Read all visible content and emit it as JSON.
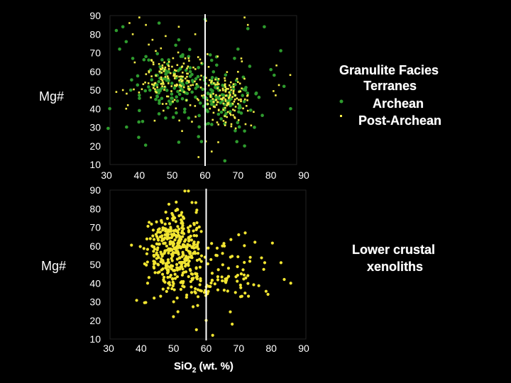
{
  "chart_data": [
    {
      "type": "scatter",
      "ylabel": "Mg#",
      "xlim": [
        30,
        90
      ],
      "ylim": [
        10,
        90
      ],
      "x_ticks": [
        "30",
        "40",
        "50",
        "60",
        "70",
        "80",
        "90"
      ],
      "y_ticks": [
        "90",
        "80",
        "70",
        "60",
        "50",
        "40",
        "30",
        "20",
        "10"
      ],
      "divider_x": 60,
      "legend_title": [
        "Granulite Facies",
        "Terranes"
      ],
      "series": [
        {
          "name": "Archean",
          "color": "#2e9b2e",
          "marker": "dot",
          "clusters": [
            {
              "center": [
                50,
                55
              ],
              "spread": [
                5,
                7
              ],
              "count": 90
            },
            {
              "center": [
                65,
                45
              ],
              "spread": [
                5,
                8
              ],
              "count": 90
            },
            {
              "center": [
                55,
                50
              ],
              "spread": [
                12,
                12
              ],
              "count": 50
            }
          ],
          "points": [
            [
              33,
              82
            ],
            [
              35,
              84
            ],
            [
              34,
              72
            ],
            [
              36,
              76
            ],
            [
              38,
              67
            ],
            [
              42,
              68
            ],
            [
              31,
              40
            ],
            [
              40,
              39
            ],
            [
              46,
              86
            ],
            [
              52,
              77
            ],
            [
              55,
              68
            ],
            [
              60,
              88
            ],
            [
              62,
              66
            ],
            [
              70,
              72
            ],
            [
              73,
              83
            ],
            [
              78,
              84
            ],
            [
              80,
              61
            ],
            [
              81,
              58
            ],
            [
              84,
              52
            ],
            [
              86,
              40
            ],
            [
              75,
              30
            ],
            [
              72,
              28
            ],
            [
              58,
              25
            ],
            [
              52,
              22
            ],
            [
              48,
              35
            ],
            [
              45,
              45
            ],
            [
              72,
              20
            ],
            [
              66,
              12
            ],
            [
              55,
              35
            ],
            [
              61,
              32
            ]
          ]
        },
        {
          "name": "Post-Archean",
          "color": "#f4ec48",
          "marker": "square",
          "clusters": [
            {
              "center": [
                50,
                57
              ],
              "spread": [
                4,
                6
              ],
              "count": 110
            },
            {
              "center": [
                66,
                47
              ],
              "spread": [
                4,
                7
              ],
              "count": 110
            },
            {
              "center": [
                58,
                50
              ],
              "spread": [
                10,
                12
              ],
              "count": 60
            }
          ],
          "points": [
            [
              37,
              86
            ],
            [
              38,
              80
            ],
            [
              40,
              89
            ],
            [
              42,
              85
            ],
            [
              44,
              77
            ],
            [
              45,
              71
            ],
            [
              46,
              64
            ],
            [
              48,
              79
            ],
            [
              52,
              84
            ],
            [
              57,
              80
            ],
            [
              72,
              89
            ],
            [
              73,
              85
            ],
            [
              71,
              67
            ],
            [
              35,
              50
            ],
            [
              33,
              49
            ],
            [
              36,
              40
            ],
            [
              58,
              14
            ],
            [
              62,
              17
            ],
            [
              64,
              22
            ],
            [
              53,
              28
            ],
            [
              56,
              33
            ],
            [
              66,
              36
            ],
            [
              69,
              39
            ],
            [
              74,
              31
            ]
          ]
        }
      ]
    },
    {
      "type": "scatter",
      "ylabel": "Mg#",
      "xlabel_main": "SiO",
      "xlabel_sub": "2",
      "xlabel_rest": " (wt. %)",
      "xlim": [
        30,
        90
      ],
      "ylim": [
        10,
        90
      ],
      "x_ticks": [
        "30",
        "40",
        "50",
        "60",
        "70",
        "80",
        "90"
      ],
      "y_ticks": [
        "90",
        "80",
        "70",
        "60",
        "50",
        "40",
        "30",
        "20",
        "10"
      ],
      "divider_x": 60,
      "legend_title": [
        "Lower crustal",
        "xenoliths"
      ],
      "series": [
        {
          "color": "#f2e531",
          "marker": "dot",
          "clusters": [
            {
              "center": [
                48,
                60
              ],
              "spread": [
                4,
                9
              ],
              "count": 200
            },
            {
              "center": [
                52,
                58
              ],
              "spread": [
                3,
                12
              ],
              "count": 150
            },
            {
              "center": [
                58,
                47
              ],
              "spread": [
                9,
                10
              ],
              "count": 90
            },
            {
              "center": [
                65,
                42
              ],
              "spread": [
                7,
                6
              ],
              "count": 50
            }
          ],
          "points": [
            [
              78,
              51
            ],
            [
              83,
              51
            ],
            [
              86,
              40
            ],
            [
              84,
              42
            ],
            [
              70,
              66
            ],
            [
              72,
              67
            ],
            [
              75,
              62
            ],
            [
              69,
              35
            ],
            [
              73,
              33
            ],
            [
              79,
              34
            ],
            [
              57,
              15
            ],
            [
              60,
              20
            ],
            [
              62,
              12
            ],
            [
              68,
              18
            ],
            [
              63,
              55
            ],
            [
              65,
              60
            ],
            [
              50,
              30
            ],
            [
              46,
              33
            ],
            [
              42,
              40
            ],
            [
              44,
              32
            ]
          ]
        }
      ]
    }
  ]
}
